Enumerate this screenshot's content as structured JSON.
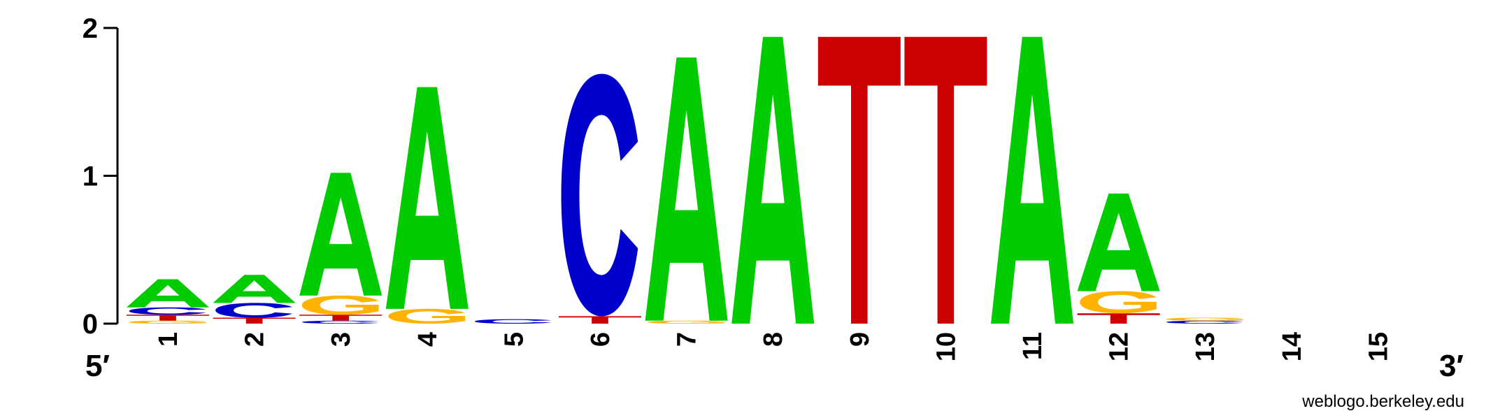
{
  "chart_data": {
    "type": "sequence-logo",
    "ylim": [
      0,
      2
    ],
    "y_ticks": [
      "0",
      "1",
      "2"
    ],
    "x_ticks": [
      "1",
      "2",
      "3",
      "4",
      "5",
      "6",
      "7",
      "8",
      "9",
      "10",
      "11",
      "12",
      "13",
      "14",
      "15"
    ],
    "end_labels": {
      "left": "5′",
      "right": "3′"
    },
    "credit": "weblogo.berkeley.edu",
    "colors": {
      "A": "#00cc00",
      "C": "#0000cc",
      "G": "#ffb300",
      "T": "#cc0000"
    },
    "positions": [
      {
        "position": "1",
        "stack": [
          {
            "base": "G",
            "bits": 0.02
          },
          {
            "base": "T",
            "bits": 0.04
          },
          {
            "base": "C",
            "bits": 0.05
          },
          {
            "base": "A",
            "bits": 0.19
          }
        ]
      },
      {
        "position": "2",
        "stack": [
          {
            "base": "T",
            "bits": 0.04
          },
          {
            "base": "C",
            "bits": 0.1
          },
          {
            "base": "A",
            "bits": 0.19
          }
        ]
      },
      {
        "position": "3",
        "stack": [
          {
            "base": "C",
            "bits": 0.02
          },
          {
            "base": "T",
            "bits": 0.04
          },
          {
            "base": "G",
            "bits": 0.13
          },
          {
            "base": "A",
            "bits": 0.83
          }
        ]
      },
      {
        "position": "4",
        "stack": [
          {
            "base": "G",
            "bits": 0.1
          },
          {
            "base": "A",
            "bits": 1.5
          }
        ]
      },
      {
        "position": "5",
        "stack": [
          {
            "base": "C",
            "bits": 0.03
          }
        ]
      },
      {
        "position": "6",
        "stack": [
          {
            "base": "T",
            "bits": 0.05
          },
          {
            "base": "C",
            "bits": 1.64
          }
        ]
      },
      {
        "position": "7",
        "stack": [
          {
            "base": "G",
            "bits": 0.02
          },
          {
            "base": "A",
            "bits": 1.78
          }
        ]
      },
      {
        "position": "8",
        "stack": [
          {
            "base": "A",
            "bits": 1.94
          }
        ]
      },
      {
        "position": "9",
        "stack": [
          {
            "base": "T",
            "bits": 1.94
          }
        ]
      },
      {
        "position": "10",
        "stack": [
          {
            "base": "T",
            "bits": 1.94
          }
        ]
      },
      {
        "position": "11",
        "stack": [
          {
            "base": "A",
            "bits": 1.94
          }
        ]
      },
      {
        "position": "12",
        "stack": [
          {
            "base": "T",
            "bits": 0.07
          },
          {
            "base": "G",
            "bits": 0.15
          },
          {
            "base": "A",
            "bits": 0.66
          }
        ]
      },
      {
        "position": "13",
        "stack": [
          {
            "base": "C",
            "bits": 0.02
          },
          {
            "base": "G",
            "bits": 0.02
          }
        ]
      },
      {
        "position": "14",
        "stack": []
      },
      {
        "position": "15",
        "stack": []
      }
    ]
  }
}
